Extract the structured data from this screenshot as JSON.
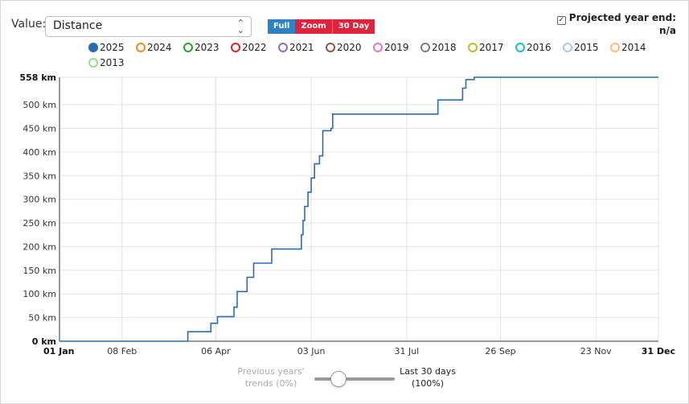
{
  "controls": {
    "value_label": "Value:",
    "value_selected": "Distance",
    "zoom_buttons": [
      "Full",
      "Zoom",
      "30 Day"
    ],
    "projected": {
      "label": "Projected year end:",
      "value": "n/a",
      "checked": true
    }
  },
  "legend": [
    {
      "label": "2025",
      "color": "#2b6cb0",
      "filled": true
    },
    {
      "label": "2024",
      "color": "#f58a24",
      "filled": false
    },
    {
      "label": "2023",
      "color": "#2ca02c",
      "filled": false
    },
    {
      "label": "2022",
      "color": "#d62728",
      "filled": false
    },
    {
      "label": "2021",
      "color": "#9467bd",
      "filled": false
    },
    {
      "label": "2020",
      "color": "#8c564b",
      "filled": false
    },
    {
      "label": "2019",
      "color": "#e377c2",
      "filled": false
    },
    {
      "label": "2018",
      "color": "#7f7f7f",
      "filled": false
    },
    {
      "label": "2017",
      "color": "#bcbd22",
      "filled": false
    },
    {
      "label": "2016",
      "color": "#17becf",
      "filled": false
    },
    {
      "label": "2015",
      "color": "#aec7e8",
      "filled": false
    },
    {
      "label": "2014",
      "color": "#ffbb78",
      "filled": false
    },
    {
      "label": "2013",
      "color": "#98df8a",
      "filled": false
    }
  ],
  "chart_data": {
    "type": "line",
    "y_max_label": "558 km",
    "ylim": [
      0,
      558
    ],
    "yticks": [
      0,
      50,
      100,
      150,
      200,
      250,
      300,
      350,
      400,
      450,
      500
    ],
    "ytick_labels": [
      "0 km",
      "50 km",
      "100 km",
      "150 km",
      "200 km",
      "250 km",
      "300 km",
      "350 km",
      "400 km",
      "450 km",
      "500 km"
    ],
    "xlim": [
      "2025-01-01",
      "2025-12-31"
    ],
    "xticks": [
      "2025-01-01",
      "2025-02-08",
      "2025-04-06",
      "2025-06-03",
      "2025-07-31",
      "2025-09-26",
      "2025-11-23",
      "2025-12-31"
    ],
    "xtick_labels": [
      "01 Jan",
      "08 Feb",
      "06 Apr",
      "03 Jun",
      "31 Jul",
      "26 Sep",
      "23 Nov",
      "31 Dec"
    ],
    "grid": true,
    "series": [
      {
        "name": "2025",
        "color": "#2b6cb0",
        "points": [
          [
            "2025-01-01",
            0
          ],
          [
            "2025-03-20",
            0
          ],
          [
            "2025-03-20",
            20
          ],
          [
            "2025-04-03",
            20
          ],
          [
            "2025-04-03",
            38
          ],
          [
            "2025-04-07",
            38
          ],
          [
            "2025-04-07",
            52
          ],
          [
            "2025-04-17",
            52
          ],
          [
            "2025-04-17",
            72
          ],
          [
            "2025-04-19",
            72
          ],
          [
            "2025-04-19",
            105
          ],
          [
            "2025-04-25",
            105
          ],
          [
            "2025-04-25",
            135
          ],
          [
            "2025-04-29",
            135
          ],
          [
            "2025-04-29",
            165
          ],
          [
            "2025-05-10",
            165
          ],
          [
            "2025-05-10",
            195
          ],
          [
            "2025-05-28",
            195
          ],
          [
            "2025-05-28",
            225
          ],
          [
            "2025-05-29",
            225
          ],
          [
            "2025-05-29",
            255
          ],
          [
            "2025-05-30",
            255
          ],
          [
            "2025-05-30",
            285
          ],
          [
            "2025-06-01",
            285
          ],
          [
            "2025-06-01",
            315
          ],
          [
            "2025-06-03",
            315
          ],
          [
            "2025-06-03",
            345
          ],
          [
            "2025-06-05",
            345
          ],
          [
            "2025-06-05",
            375
          ],
          [
            "2025-06-08",
            375
          ],
          [
            "2025-06-08",
            392
          ],
          [
            "2025-06-10",
            392
          ],
          [
            "2025-06-10",
            445
          ],
          [
            "2025-06-15",
            445
          ],
          [
            "2025-06-15",
            450
          ],
          [
            "2025-06-16",
            450
          ],
          [
            "2025-06-16",
            480
          ],
          [
            "2025-08-19",
            480
          ],
          [
            "2025-08-19",
            510
          ],
          [
            "2025-09-03",
            510
          ],
          [
            "2025-09-03",
            535
          ],
          [
            "2025-09-05",
            535
          ],
          [
            "2025-09-05",
            553
          ],
          [
            "2025-09-10",
            553
          ],
          [
            "2025-09-10",
            558
          ],
          [
            "2025-12-31",
            558
          ]
        ]
      }
    ]
  },
  "slider": {
    "left_label": "Previous years' trends (0%)",
    "right_label": "Last 30 days (100%)",
    "value": 0.3
  }
}
